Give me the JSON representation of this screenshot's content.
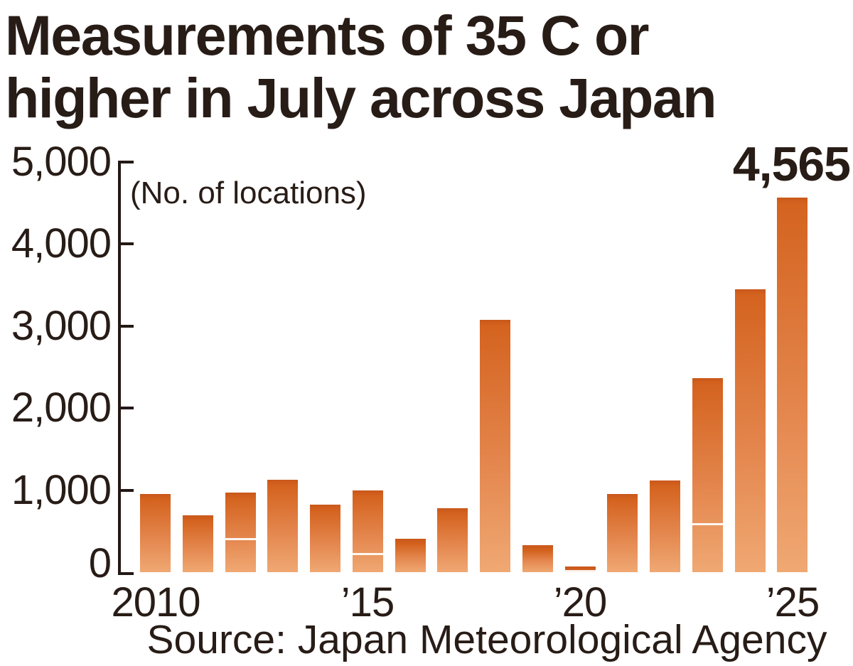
{
  "title_lines": [
    "Measurements of 35 C or",
    "higher in July across Japan"
  ],
  "chart_data": {
    "type": "bar",
    "title": "Measurements of 35 C or higher in July across Japan",
    "unit_note": "(No. of locations)",
    "source": "Source: Japan Meteorological Agency",
    "categories": [
      "2010",
      "2011",
      "2012",
      "2013",
      "2014",
      "2015",
      "2016",
      "2017",
      "2018",
      "2019",
      "2020",
      "2021",
      "2022",
      "2023",
      "2024",
      "2025"
    ],
    "values": [
      950,
      690,
      970,
      1130,
      820,
      1000,
      410,
      780,
      3075,
      330,
      70,
      950,
      1120,
      2370,
      3445,
      4565
    ],
    "inner_stripes": [
      {
        "year": "2012",
        "value": 420
      },
      {
        "year": "2015",
        "value": 230
      },
      {
        "year": "2020",
        "value": 30
      },
      {
        "year": "2023",
        "value": 600
      }
    ],
    "peak_label": {
      "year": "2025",
      "text": "4,565"
    },
    "y_ticks": [
      {
        "value": 0,
        "label": "0"
      },
      {
        "value": 1000,
        "label": "1,000"
      },
      {
        "value": 2000,
        "label": "2,000"
      },
      {
        "value": 3000,
        "label": "3,000"
      },
      {
        "value": 4000,
        "label": "4,000"
      },
      {
        "value": 5000,
        "label": "5,000"
      }
    ],
    "x_ticks": [
      {
        "index": 0,
        "label": "2010"
      },
      {
        "index": 5,
        "label": "’15"
      },
      {
        "index": 10,
        "label": "’20"
      },
      {
        "index": 15,
        "label": "’25"
      }
    ],
    "ylim": [
      0,
      5000
    ],
    "grid": false,
    "legend": false,
    "colors": {
      "bar_top": "#c9571b",
      "bar_mid": "#d4631f",
      "bar_bottom": "#f0a873",
      "stripe": "#ffffff",
      "text": "#281c17",
      "axis": "#231815"
    }
  }
}
